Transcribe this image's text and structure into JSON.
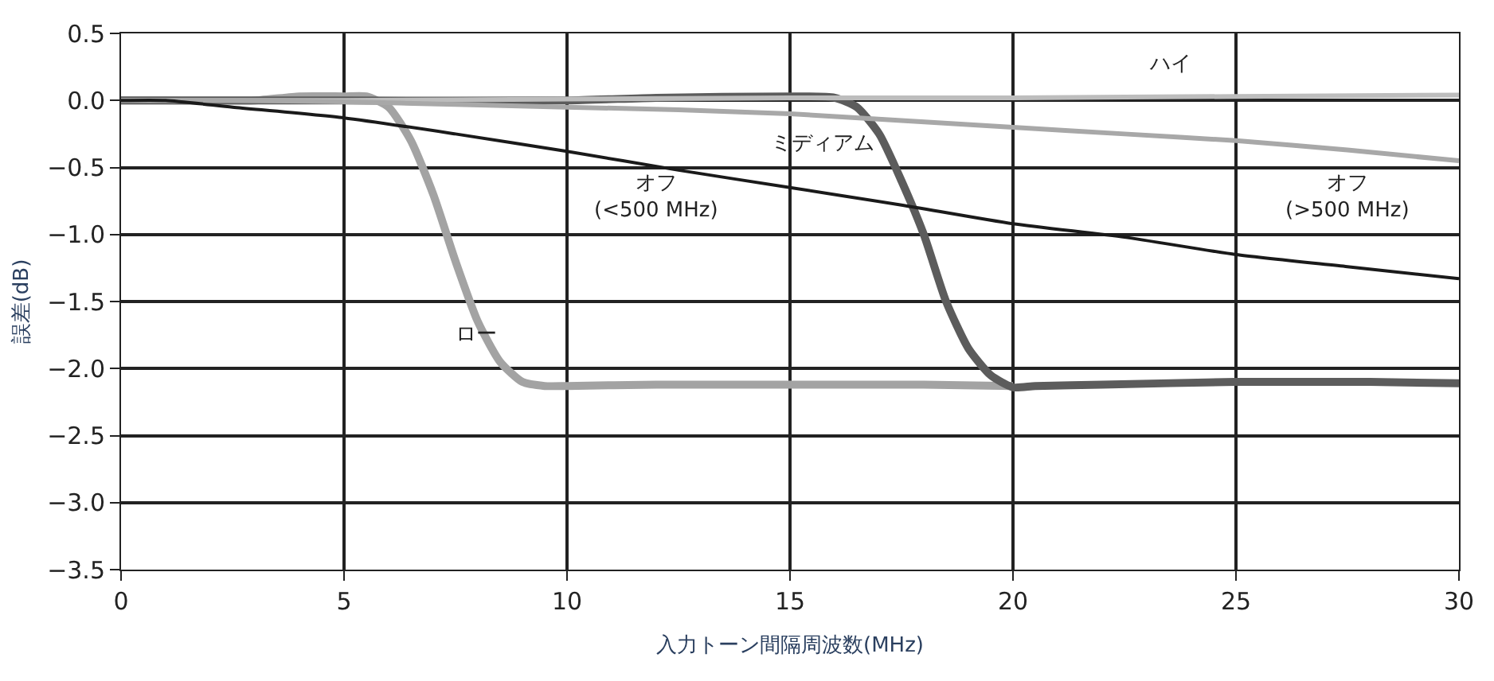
{
  "chart_data": {
    "type": "line",
    "xlabel": "入力トーン間隔周波数(MHz)",
    "ylabel": "誤差(dB)",
    "xlim": [
      0,
      30
    ],
    "xticks": [
      0,
      5,
      10,
      15,
      20,
      25,
      30
    ],
    "ylim": [
      -3.5,
      0.5
    ],
    "yticks": [
      {
        "value": 0.5,
        "label": "0.5"
      },
      {
        "value": 0,
        "label": "0.0"
      },
      {
        "value": -0.5,
        "label": "−0.5"
      },
      {
        "value": -1,
        "label": "−1.0"
      },
      {
        "value": -1.5,
        "label": "−1.5"
      },
      {
        "value": -2,
        "label": "−2.0"
      },
      {
        "value": -2.5,
        "label": "−2.5"
      },
      {
        "value": -3,
        "label": "−3.0"
      },
      {
        "value": -3.5,
        "label": "−3.5"
      }
    ],
    "grid": true,
    "legend": false,
    "marker": "none",
    "line_style": "solid",
    "series": [
      {
        "name": "ロー",
        "color": "#a3a3a3",
        "x": [
          0,
          1,
          3,
          4,
          5,
          5.5,
          6,
          6.5,
          7,
          7.5,
          8,
          8.5,
          9,
          9.5,
          10,
          12,
          15,
          18,
          20
        ],
        "values": [
          0,
          0,
          0,
          0.03,
          0.03,
          0.03,
          -0.05,
          -0.3,
          -0.7,
          -1.2,
          -1.65,
          -1.95,
          -2.1,
          -2.13,
          -2.13,
          -2.12,
          -2.12,
          -2.12,
          -2.13
        ]
      },
      {
        "name": "ミディアム",
        "color": "#5c5c5c",
        "x": [
          0,
          5,
          10,
          12,
          15,
          16,
          16.5,
          17,
          17.5,
          18,
          18.5,
          19,
          19.5,
          20,
          20.5,
          22,
          25,
          28,
          30
        ],
        "values": [
          0,
          0,
          0,
          0.02,
          0.03,
          0.02,
          -0.05,
          -0.25,
          -0.6,
          -1.0,
          -1.5,
          -1.85,
          -2.05,
          -2.14,
          -2.13,
          -2.12,
          -2.1,
          -2.1,
          -2.11
        ]
      },
      {
        "name": "ハイ",
        "color": "#bdbdbd",
        "x": [
          0,
          5,
          10,
          15,
          20,
          25,
          30
        ],
        "values": [
          0,
          0,
          0.01,
          0.02,
          0.02,
          0.03,
          0.04
        ]
      },
      {
        "name": "オフ\n(>500 MHz)",
        "color": "#a8a8a8",
        "x": [
          0,
          2.5,
          5,
          7.5,
          10,
          12.5,
          15,
          17.5,
          20,
          22.5,
          25,
          27.5,
          30
        ],
        "values": [
          0,
          0,
          -0.01,
          -0.03,
          -0.05,
          -0.07,
          -0.1,
          -0.15,
          -0.2,
          -0.25,
          -0.3,
          -0.37,
          -0.45
        ]
      },
      {
        "name": "オフ\n(<500 MHz)",
        "color": "#1a1a1a",
        "x": [
          0,
          1,
          2.5,
          5,
          7.5,
          10,
          12.5,
          15,
          17.5,
          20,
          22.5,
          25,
          27.5,
          30
        ],
        "values": [
          0,
          0,
          -0.05,
          -0.13,
          -0.25,
          -0.38,
          -0.52,
          -0.65,
          -0.78,
          -0.92,
          -1.02,
          -1.15,
          -1.24,
          -1.33
        ]
      }
    ]
  }
}
